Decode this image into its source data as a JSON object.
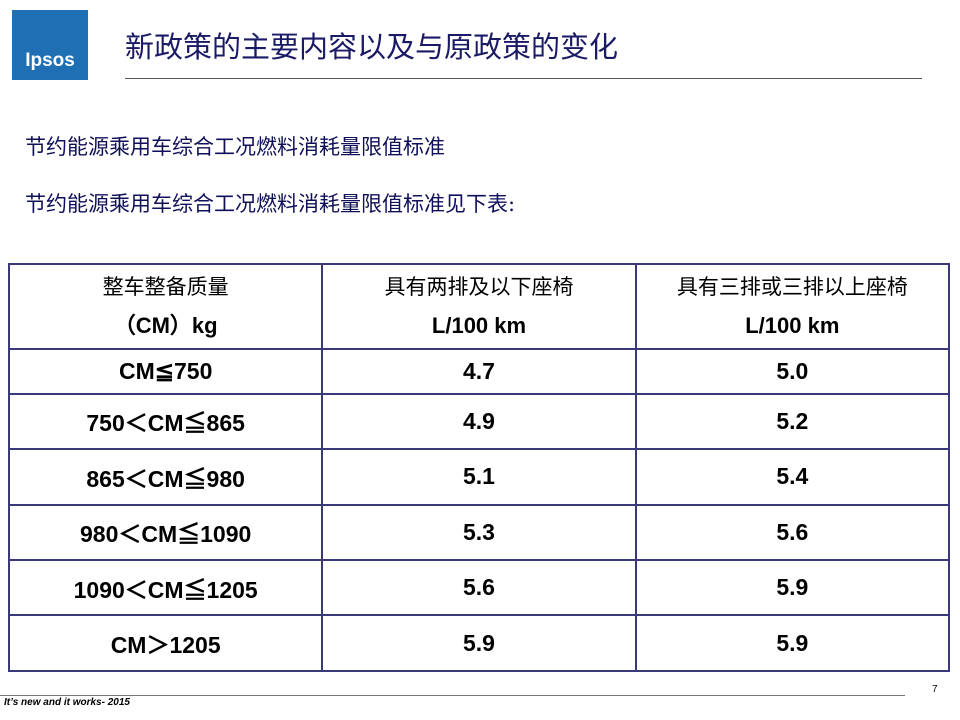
{
  "logo": "Ipsos",
  "header": {
    "title": "新政策的主要内容以及与原政策的变化"
  },
  "body": {
    "lines": [
      "节约能源乘用车综合工况燃料消耗量限值标准",
      "节约能源乘用车综合工况燃料消耗量限值标准见下表:"
    ]
  },
  "table": {
    "header": [
      [
        "整车整备质量",
        "（CM）kg"
      ],
      [
        "具有两排及以下座椅",
        "L/100 km"
      ],
      [
        "具有三排或三排以上座椅",
        "L/100 km"
      ]
    ],
    "rows": [
      [
        "CM≦750",
        "4.7",
        "5.0"
      ],
      [
        "750＜CM≦865",
        "4.9",
        "5.2"
      ],
      [
        "865＜CM≦980",
        "5.1",
        "5.4"
      ],
      [
        "980＜CM≦1090",
        "5.3",
        "5.6"
      ],
      [
        "1090＜CM≦1205",
        "5.6",
        "5.9"
      ],
      [
        "CM＞1205",
        "5.9",
        "5.9"
      ]
    ]
  },
  "footer": {
    "text": "It’s new and it works- 2015",
    "page": "7"
  }
}
